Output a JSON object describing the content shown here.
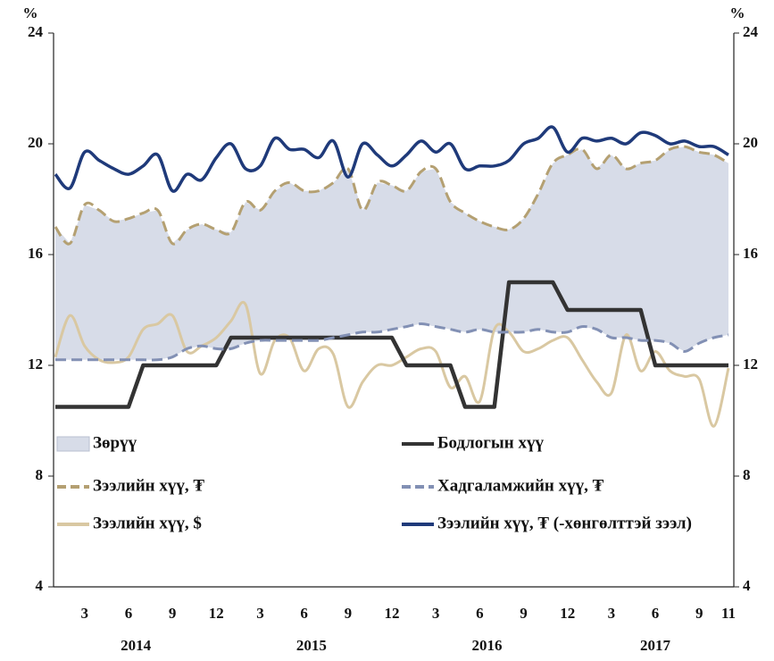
{
  "chart_data": {
    "type": "line",
    "ylabel": "%",
    "y2label": "%",
    "categories": [
      null,
      null,
      "3",
      null,
      null,
      "6",
      null,
      null,
      "9",
      null,
      null,
      "12",
      null,
      null,
      "3",
      null,
      null,
      "6",
      null,
      null,
      "9",
      null,
      null,
      "12",
      null,
      null,
      "3",
      null,
      null,
      "6",
      null,
      null,
      "9",
      null,
      null,
      "12",
      null,
      null,
      "3",
      null,
      null,
      "6",
      null,
      null,
      "9",
      null,
      "11"
    ],
    "x_groups": [
      "2014",
      "2015",
      "2016",
      "2017"
    ],
    "ylim": [
      4,
      24
    ],
    "yticks": [
      4,
      8,
      12,
      16,
      20,
      24
    ],
    "y2lim": [
      4,
      24
    ],
    "y2ticks": [
      4,
      8,
      12,
      16,
      20,
      24
    ],
    "grid": false,
    "band": {
      "name": "Зөрүү",
      "color": "#d7dce8",
      "upper": "Зээлийн хүү, ₮",
      "lower": "Хадгаламжийн хүү, ₮"
    },
    "series": [
      {
        "name": "Зээлийн хүү, ₮",
        "color": "#b4a072",
        "dash": true,
        "smooth": true,
        "values": [
          17.0,
          16.4,
          17.8,
          17.6,
          17.2,
          17.3,
          17.5,
          17.6,
          16.4,
          16.9,
          17.1,
          16.9,
          16.8,
          17.9,
          17.6,
          18.3,
          18.6,
          18.3,
          18.3,
          18.6,
          19.1,
          17.6,
          18.6,
          18.5,
          18.3,
          19.0,
          19.1,
          17.9,
          17.5,
          17.2,
          17.0,
          16.9,
          17.3,
          18.2,
          19.3,
          19.6,
          19.8,
          19.1,
          19.6,
          19.1,
          19.3,
          19.4,
          19.8,
          19.9,
          19.7,
          19.6,
          19.3
        ]
      },
      {
        "name": "Зээлийн хүү, $",
        "color": "#d9c8a2",
        "dash": false,
        "smooth": true,
        "values": [
          12.3,
          13.8,
          12.7,
          12.2,
          12.1,
          12.3,
          13.3,
          13.5,
          13.8,
          12.5,
          12.7,
          13.0,
          13.6,
          14.2,
          11.7,
          12.9,
          13.0,
          11.8,
          12.6,
          12.4,
          10.5,
          11.4,
          12.0,
          12.0,
          12.3,
          12.6,
          12.5,
          11.2,
          11.6,
          10.7,
          13.3,
          13.2,
          12.5,
          12.6,
          12.9,
          13.0,
          12.2,
          11.4,
          11.0,
          13.1,
          11.8,
          12.5,
          11.8,
          11.6,
          11.5,
          9.8,
          11.9
        ]
      },
      {
        "name": "Бодлогын хүү",
        "color": "#333333",
        "dash": false,
        "smooth": false,
        "values": [
          10.5,
          10.5,
          10.5,
          10.5,
          10.5,
          10.5,
          12,
          12,
          12,
          12,
          12,
          12,
          13,
          13,
          13,
          13,
          13,
          13,
          13,
          13,
          13,
          13,
          13,
          13,
          12,
          12,
          12,
          12,
          10.5,
          10.5,
          10.5,
          15,
          15,
          15,
          15,
          14,
          14,
          14,
          14,
          14,
          14,
          12,
          12,
          12,
          12,
          12,
          12
        ]
      },
      {
        "name": "Хадгаламжийн хүү, ₮",
        "color": "#8290b4",
        "dash": true,
        "smooth": true,
        "values": [
          12.2,
          12.2,
          12.2,
          12.2,
          12.2,
          12.2,
          12.2,
          12.2,
          12.3,
          12.6,
          12.7,
          12.6,
          12.6,
          12.8,
          12.9,
          12.9,
          12.9,
          12.9,
          12.9,
          13.0,
          13.1,
          13.2,
          13.2,
          13.3,
          13.4,
          13.5,
          13.4,
          13.3,
          13.2,
          13.3,
          13.2,
          13.2,
          13.2,
          13.3,
          13.2,
          13.2,
          13.4,
          13.3,
          13.0,
          13.0,
          12.9,
          12.9,
          12.8,
          12.5,
          12.8,
          13.0,
          13.1
        ]
      },
      {
        "name": "Зээлийн хүү, ₮ (-хөнгөлттэй зээл)",
        "color": "#1f3a7a",
        "dash": false,
        "smooth": true,
        "values": [
          18.9,
          18.4,
          19.7,
          19.4,
          19.1,
          18.9,
          19.2,
          19.6,
          18.3,
          18.9,
          18.7,
          19.5,
          20.0,
          19.1,
          19.2,
          20.2,
          19.8,
          19.8,
          19.5,
          20.1,
          18.8,
          20.0,
          19.6,
          19.2,
          19.6,
          20.1,
          19.7,
          20.0,
          19.1,
          19.2,
          19.2,
          19.4,
          20.0,
          20.2,
          20.6,
          19.7,
          20.2,
          20.1,
          20.2,
          20.0,
          20.4,
          20.3,
          20.0,
          20.1,
          19.9,
          19.9,
          19.6
        ]
      }
    ]
  }
}
